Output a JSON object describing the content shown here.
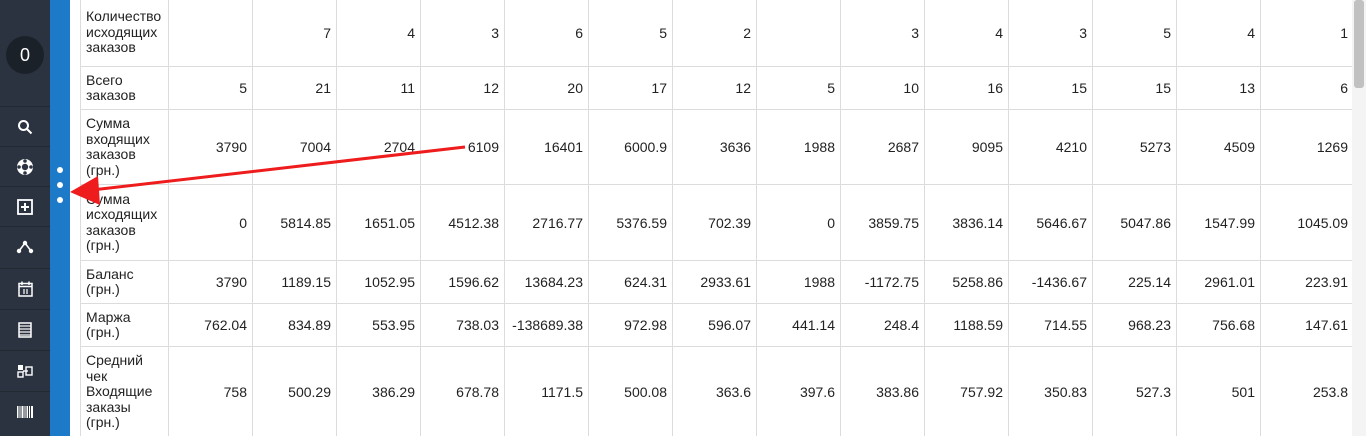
{
  "sidebar": {
    "counter": "0",
    "items": [
      {
        "icon": "search-icon"
      },
      {
        "icon": "lifebuoy-icon"
      },
      {
        "icon": "add-box-icon"
      },
      {
        "icon": "share-nodes-icon"
      },
      {
        "icon": "calendar-icon"
      },
      {
        "icon": "list-icon"
      },
      {
        "icon": "transfer-icon"
      },
      {
        "icon": "barcode-icon"
      }
    ]
  },
  "table": {
    "rows": [
      {
        "label": "Количество исходящих заказов",
        "values": [
          "",
          "7",
          "4",
          "3",
          "6",
          "5",
          "2",
          "",
          "3",
          "4",
          "3",
          "5",
          "4",
          "1"
        ]
      },
      {
        "label": "Всего заказов",
        "values": [
          "5",
          "21",
          "11",
          "12",
          "20",
          "17",
          "12",
          "5",
          "10",
          "16",
          "15",
          "15",
          "13",
          "6"
        ]
      },
      {
        "label": "Сумма входящих заказов (грн.)",
        "values": [
          "3790",
          "7004",
          "2704",
          "6109",
          "16401",
          "6000.9",
          "3636",
          "1988",
          "2687",
          "9095",
          "4210",
          "5273",
          "4509",
          "1269"
        ]
      },
      {
        "label": "Сумма исходящих заказов (грн.)",
        "values": [
          "0",
          "5814.85",
          "1651.05",
          "4512.38",
          "2716.77",
          "5376.59",
          "702.39",
          "0",
          "3859.75",
          "3836.14",
          "5646.67",
          "5047.86",
          "1547.99",
          "1045.09"
        ]
      },
      {
        "label": "Баланс (грн.)",
        "values": [
          "3790",
          "1189.15",
          "1052.95",
          "1596.62",
          "13684.23",
          "624.31",
          "2933.61",
          "1988",
          "-1172.75",
          "5258.86",
          "-1436.67",
          "225.14",
          "2961.01",
          "223.91"
        ]
      },
      {
        "label": "Маржа (грн.)",
        "values": [
          "762.04",
          "834.89",
          "553.95",
          "738.03",
          "-138689.38",
          "972.98",
          "596.07",
          "441.14",
          "248.4",
          "1188.59",
          "714.55",
          "968.23",
          "756.68",
          "147.61"
        ]
      },
      {
        "label": "Средний чек Входящие заказы (грн.)",
        "values": [
          "758",
          "500.29",
          "386.29",
          "678.78",
          "1171.5",
          "500.08",
          "363.6",
          "397.6",
          "383.86",
          "757.92",
          "350.83",
          "527.3",
          "501",
          "253.8"
        ]
      }
    ]
  },
  "colors": {
    "sidebar": "#2b3340",
    "accent_bar": "#1c7ac9",
    "annotation_arrow": "#ee1c1c"
  }
}
